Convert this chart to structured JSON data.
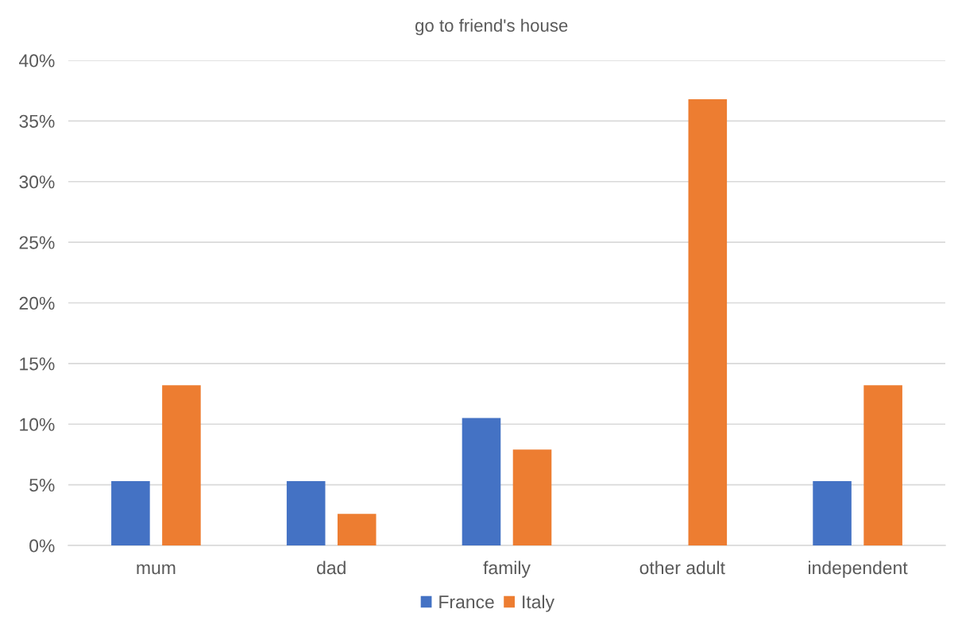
{
  "chart_data": {
    "type": "bar",
    "title": "go to friend's house",
    "categories": [
      "mum",
      "dad",
      "family",
      "other adult",
      "independent"
    ],
    "series": [
      {
        "name": "France",
        "color": "#4472c4",
        "values": [
          5.3,
          5.3,
          10.5,
          null,
          5.3
        ]
      },
      {
        "name": "Italy",
        "color": "#ed7d31",
        "values": [
          13.2,
          2.6,
          7.9,
          36.8,
          13.2
        ]
      }
    ],
    "ylim": [
      0,
      40
    ],
    "yticks": [
      {
        "value": 0,
        "label": "0%"
      },
      {
        "value": 5,
        "label": "5%"
      },
      {
        "value": 10,
        "label": "10%"
      },
      {
        "value": 15,
        "label": "15%"
      },
      {
        "value": 20,
        "label": "20%"
      },
      {
        "value": 25,
        "label": "25%"
      },
      {
        "value": 30,
        "label": "30%"
      },
      {
        "value": 35,
        "label": "35%"
      },
      {
        "value": 40,
        "label": "40%"
      }
    ],
    "grid": "y",
    "legend": "bottom"
  }
}
